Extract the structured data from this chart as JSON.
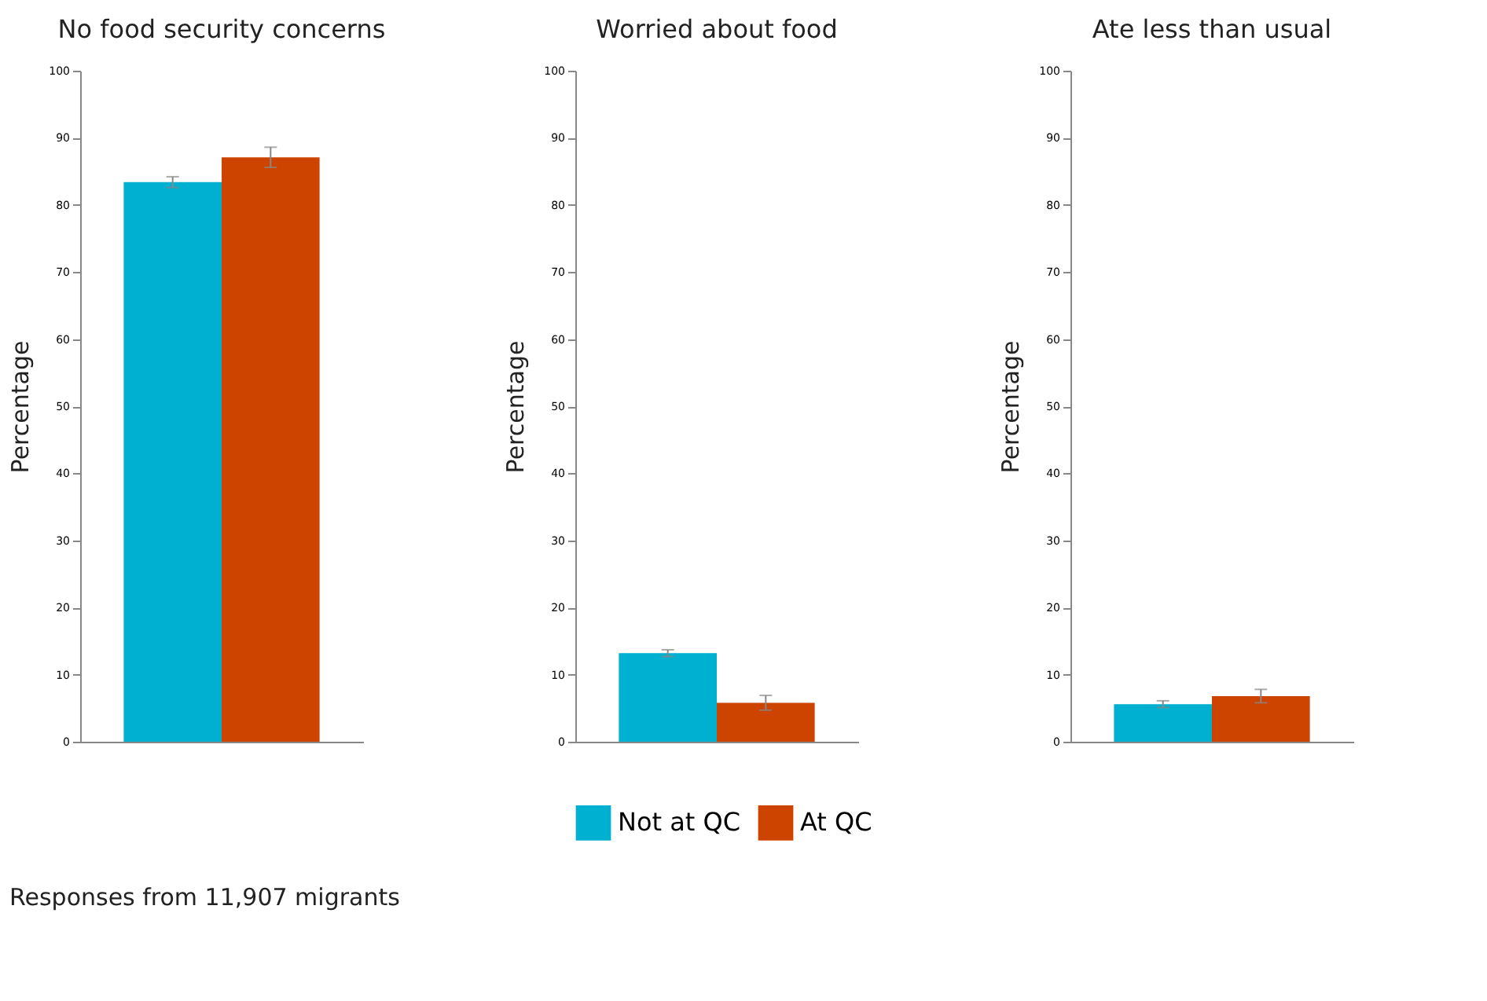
{
  "chart_data": [
    {
      "type": "bar",
      "title": "No food security concerns",
      "ylabel": "Percentage",
      "categories": [
        null
      ],
      "ylim": [
        0,
        100
      ],
      "yticks": [
        0,
        10,
        20,
        30,
        40,
        50,
        60,
        70,
        80,
        90,
        100
      ],
      "grid": false,
      "legend": false,
      "series": [
        {
          "color": "#00b0d0",
          "values": [
            83.4
          ],
          "errors": [
            0.8
          ]
        },
        {
          "color": "#cc4400",
          "values": [
            87.1
          ],
          "errors": [
            1.5
          ]
        }
      ],
      "annotations": [
        "Responses from 11,907 migrants"
      ]
    },
    {
      "type": "bar",
      "title": "Worried about food",
      "ylabel": "Percentage",
      "categories": [
        null
      ],
      "ylim": [
        0,
        100
      ],
      "yticks": [
        0,
        10,
        20,
        30,
        40,
        50,
        60,
        70,
        80,
        90,
        100
      ],
      "grid": false,
      "legend": "bottom",
      "series": [
        {
          "name": "Not at QC",
          "color": "#00b0d0",
          "values": [
            13.2
          ],
          "errors": [
            0.5
          ]
        },
        {
          "name": "At QC",
          "color": "#cc4400",
          "values": [
            5.8
          ],
          "errors": [
            1.1
          ]
        }
      ]
    },
    {
      "type": "bar",
      "title": "Ate less than usual",
      "ylabel": "Percentage",
      "categories": [
        null
      ],
      "ylim": [
        0,
        100
      ],
      "yticks": [
        0,
        10,
        20,
        30,
        40,
        50,
        60,
        70,
        80,
        90,
        100
      ],
      "grid": false,
      "legend": false,
      "series": [
        {
          "color": "#00b0d0",
          "values": [
            5.6
          ],
          "errors": [
            0.5
          ]
        },
        {
          "color": "#cc4400",
          "values": [
            6.8
          ],
          "errors": [
            1.0
          ]
        }
      ]
    }
  ]
}
